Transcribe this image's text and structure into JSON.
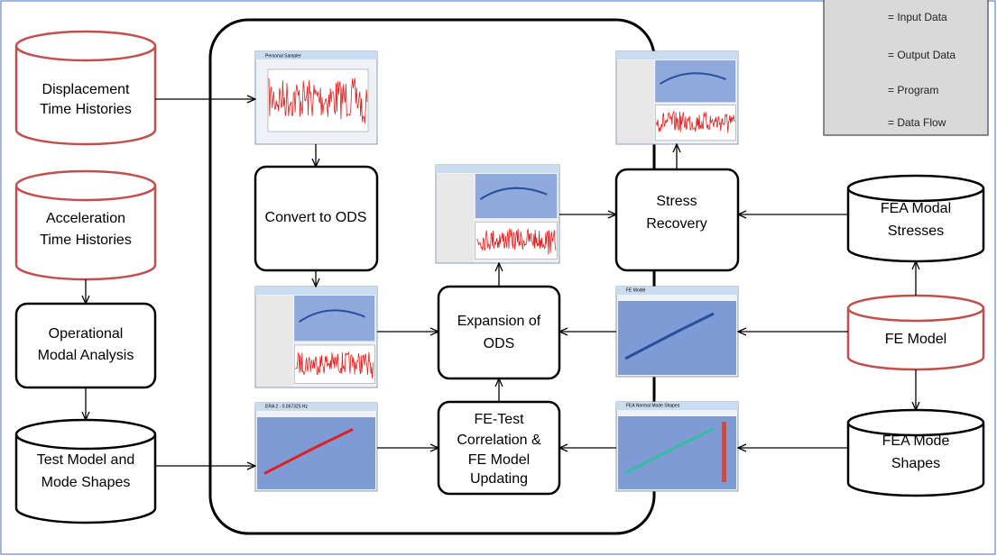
{
  "legend": {
    "items": [
      "= Input Data",
      "= Output Data",
      "= Program",
      "= Data Flow"
    ]
  },
  "nodes": [
    {
      "label": [
        "Displacement",
        "Time Histories"
      ]
    },
    {
      "label": [
        "Acceleration",
        "Time Histories"
      ]
    },
    {
      "label": [
        "Operational",
        "Modal Analysis"
      ]
    },
    {
      "label": [
        "Test Model and",
        "Mode Shapes"
      ]
    },
    {
      "label": [
        "Convert to ODS"
      ]
    },
    {
      "label": [
        "Expansion of",
        "ODS"
      ]
    },
    {
      "label": [
        "FE-Test",
        "Correlation &",
        "FE Model",
        "Updating"
      ]
    },
    {
      "label": [
        "Stress",
        "Recovery"
      ]
    },
    {
      "label": [
        "FEA Modal",
        "Stresses"
      ]
    },
    {
      "label": [
        "FE Model"
      ]
    },
    {
      "label": [
        "FEA Mode",
        "Shapes"
      ]
    }
  ],
  "screenshots": [
    {
      "title": "Personal Sampler"
    },
    {
      "title": "ERA 2 - 0.067325 Hz"
    },
    {
      "title": "FE Model"
    },
    {
      "title": "FEA Normal Mode Shapes"
    }
  ]
}
